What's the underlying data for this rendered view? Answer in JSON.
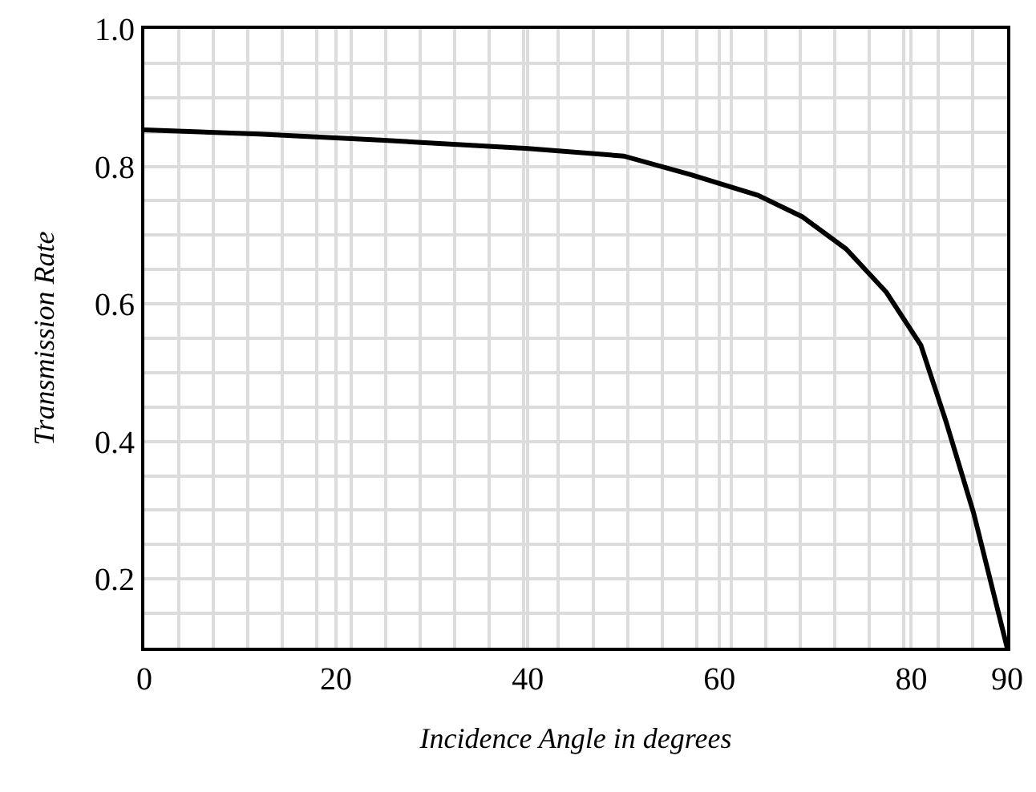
{
  "chart_data": {
    "type": "line",
    "xlabel": "Incidence Angle in degrees",
    "ylabel": "Transmission Rate",
    "x": [
      0,
      12,
      25,
      40,
      50,
      57,
      64,
      68.6,
      73.2,
      77.4,
      81,
      83.6,
      86.5,
      90
    ],
    "series": [
      {
        "color": "#000000",
        "values": [
          0.853,
          0.847,
          0.838,
          0.826,
          0.815,
          0.788,
          0.758,
          0.727,
          0.68,
          0.617,
          0.54,
          0.43,
          0.296,
          0.1
        ]
      }
    ],
    "xlim": [
      0,
      90
    ],
    "xticks": [
      0,
      20,
      40,
      60,
      80,
      90
    ],
    "ylim": [
      0.1,
      1.0
    ],
    "yticks": [
      0.2,
      0.4,
      0.6,
      0.8,
      {
        "value": 1.0,
        "label": "1.0"
      }
    ],
    "grid": true,
    "legend": false,
    "marker": "none",
    "line_style": "solid"
  }
}
